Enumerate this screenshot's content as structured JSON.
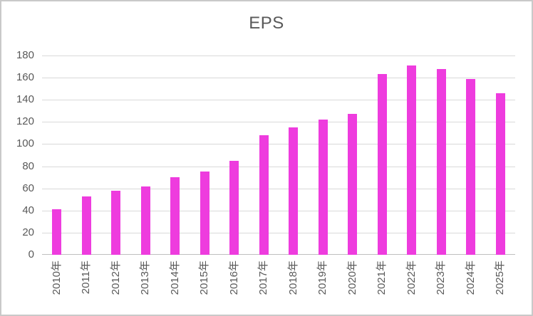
{
  "chart_data": {
    "type": "bar",
    "title": "EPS",
    "categories": [
      "2010年",
      "2011年",
      "2012年",
      "2013年",
      "2014年",
      "2015年",
      "2016年",
      "2017年",
      "2018年",
      "2019年",
      "2020年",
      "2021年",
      "2022年",
      "2023年",
      "2024年",
      "2025年"
    ],
    "series": [
      {
        "name": "EPS",
        "values": [
          41,
          53,
          58,
          62,
          70,
          75,
          85,
          108,
          115,
          122,
          127,
          163,
          171,
          168,
          159,
          146
        ]
      }
    ],
    "xlabel": "",
    "ylabel": "",
    "ylim": [
      0,
      180
    ],
    "ytick_step": 20,
    "yticks": [
      0,
      20,
      40,
      60,
      80,
      100,
      120,
      140,
      160,
      180
    ],
    "grid": "horizontal",
    "legend": "none",
    "x_tick_rotation_degrees": -90
  },
  "colors": {
    "bar": "#EE3CDE",
    "title_text": "#595959",
    "axis_text": "#595959",
    "gridline": "#D9D9D9",
    "axis_line": "#BFBFBF",
    "background": "#FFFFFF",
    "border": "#C9C9C9"
  }
}
